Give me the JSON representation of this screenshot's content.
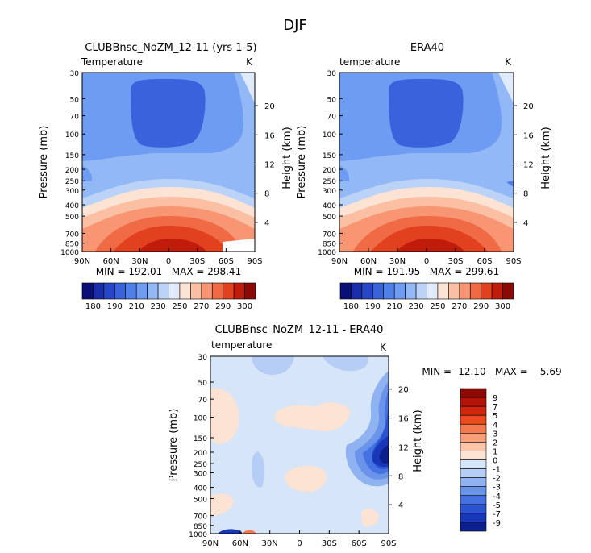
{
  "page_title": "DJF",
  "chart_data": [
    {
      "type": "heatmap",
      "title": "CLUBBnsc_NoZM_12-11 (yrs 1-5)",
      "subtitle_left": "Temperature",
      "units": "K",
      "ylabel": "Pressure (mb)",
      "y2label": "Height (km)",
      "x_ticks": [
        "90N",
        "60N",
        "30N",
        "0",
        "30S",
        "60S",
        "90S"
      ],
      "y_ticks": [
        "30",
        "50",
        "70",
        "100",
        "150",
        "200",
        "250",
        "300",
        "400",
        "500",
        "700",
        "850",
        "1000"
      ],
      "height_ticks": [
        "20",
        "16",
        "12",
        "8",
        "4"
      ],
      "min_max_text": "MIN = 192.01   MAX = 298.41",
      "min": 192.01,
      "max": 298.41,
      "colorbar_labels": [
        "180",
        "190",
        "210",
        "230",
        "250",
        "270",
        "290",
        "300"
      ]
    },
    {
      "type": "heatmap",
      "title": "ERA40",
      "subtitle_left": "temperature",
      "units": "K",
      "ylabel": "Pressure (mb)",
      "y2label": "Height (km)",
      "x_ticks": [
        "90N",
        "60N",
        "30N",
        "0",
        "30S",
        "60S",
        "90S"
      ],
      "y_ticks": [
        "30",
        "50",
        "70",
        "100",
        "150",
        "200",
        "250",
        "300",
        "400",
        "500",
        "700",
        "850",
        "1000"
      ],
      "height_ticks": [
        "20",
        "16",
        "12",
        "8",
        "4"
      ],
      "min_max_text": "MIN = 191.95   MAX = 299.61",
      "min": 191.95,
      "max": 299.61,
      "colorbar_labels": [
        "180",
        "190",
        "210",
        "230",
        "250",
        "270",
        "290",
        "300"
      ]
    },
    {
      "type": "heatmap",
      "title": "CLUBBnsc_NoZM_12-11 - ERA40",
      "subtitle_left": "temperature",
      "units": "K",
      "ylabel": "Pressure (mb)",
      "y2label": "Height (km)",
      "x_ticks": [
        "90N",
        "60N",
        "30N",
        "0",
        "30S",
        "60S",
        "90S"
      ],
      "y_ticks": [
        "30",
        "50",
        "70",
        "100",
        "150",
        "200",
        "250",
        "300",
        "400",
        "500",
        "700",
        "850",
        "1000"
      ],
      "height_ticks": [
        "20",
        "16",
        "12",
        "8",
        "4"
      ],
      "min_max_text": "MIN = -12.10   MAX =    5.69",
      "min": -12.1,
      "max": 5.69,
      "colorbar_labels": [
        "9",
        "7",
        "5",
        "4",
        "3",
        "2",
        "1",
        "0",
        "-1",
        "-2",
        "-3",
        "-4",
        "-5",
        "-7",
        "-9"
      ]
    }
  ],
  "colors": {
    "temp_scale": [
      "#0a0f78",
      "#1a2ea8",
      "#2847c8",
      "#3a62dc",
      "#4f80ea",
      "#6d9cf2",
      "#93b8f6",
      "#bcd3f8",
      "#dfeafb",
      "#fde3d3",
      "#fbc0a4",
      "#f89674",
      "#f06a45",
      "#e2411f",
      "#c01c0c",
      "#8a0a05"
    ],
    "diff_scale": [
      "#8a0a05",
      "#b31408",
      "#d2270f",
      "#e94a20",
      "#f47a4d",
      "#fa9f7a",
      "#fcc4a8",
      "#fde3d3",
      "#d7e5f9",
      "#b6cef5",
      "#8fb2f0",
      "#6a93ea",
      "#4572e2",
      "#2c53d2",
      "#1836b8",
      "#0c1f8e"
    ]
  }
}
